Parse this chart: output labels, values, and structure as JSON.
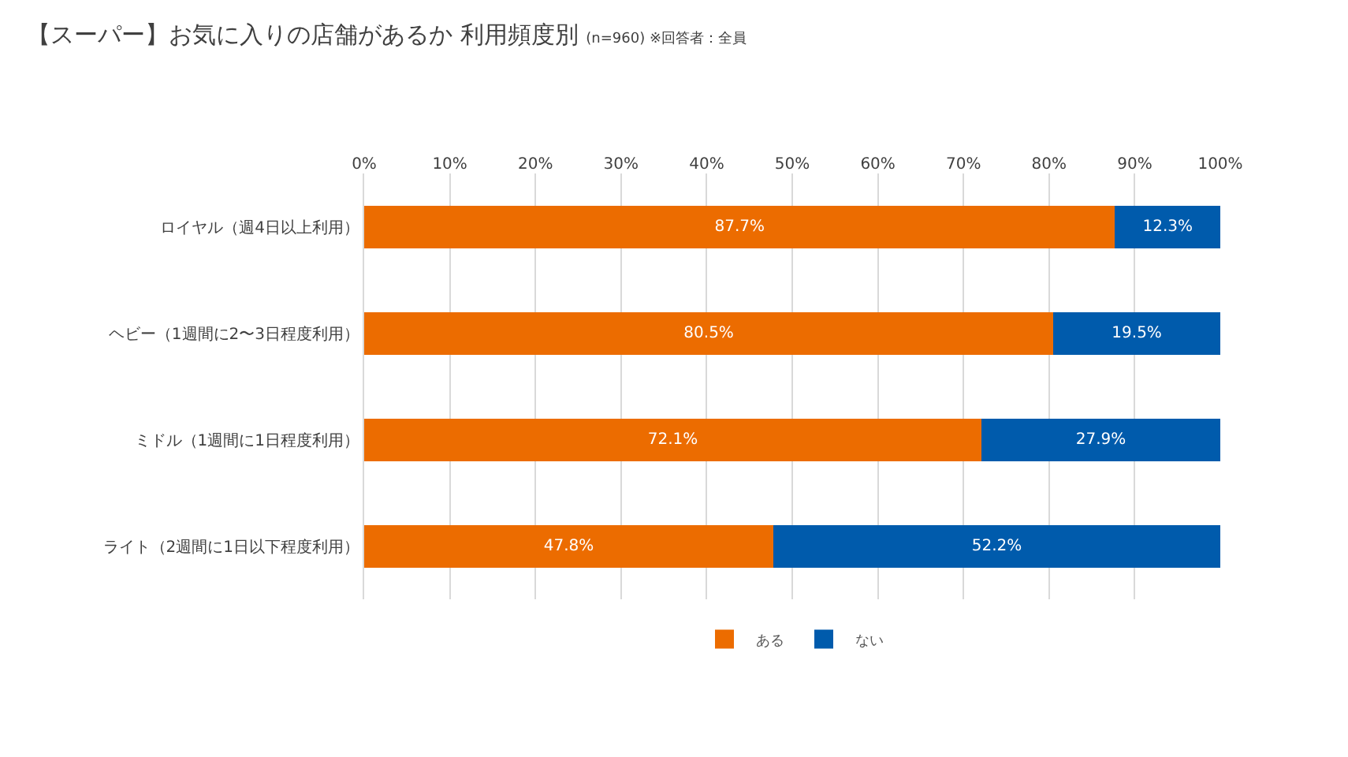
{
  "chart_data": {
    "type": "bar",
    "orientation": "horizontal",
    "stacked": true,
    "title": "【スーパー】お気に入りの店舗があるか 利用頻度別",
    "subtitle": "(n=960) ※回答者：全員",
    "categories": [
      "ロイヤル（週4日以上利用）",
      "ヘビー（1週間に2〜3日程度利用）",
      "ミドル（1週間に1日程度利用）",
      "ライト（2週間に1日以下程度利用）"
    ],
    "series": [
      {
        "name": "ある",
        "color": "#ec6c00",
        "values": [
          87.7,
          80.5,
          72.1,
          47.8
        ],
        "value_labels": [
          "87.7%",
          "80.5%",
          "72.1%",
          "47.8%"
        ]
      },
      {
        "name": "ない",
        "color": "#005bac",
        "values": [
          12.3,
          19.5,
          27.9,
          52.2
        ],
        "value_labels": [
          "12.3%",
          "19.5%",
          "27.9%",
          "52.2%"
        ]
      }
    ],
    "xlim": [
      0,
      100
    ],
    "xticks": [
      {
        "value": 0,
        "label": "0%"
      },
      {
        "value": 10,
        "label": "10%"
      },
      {
        "value": 20,
        "label": "20%"
      },
      {
        "value": 30,
        "label": "30%"
      },
      {
        "value": 40,
        "label": "40%"
      },
      {
        "value": 50,
        "label": "50%"
      },
      {
        "value": 60,
        "label": "60%"
      },
      {
        "value": 70,
        "label": "70%"
      },
      {
        "value": 80,
        "label": "80%"
      },
      {
        "value": 90,
        "label": "90%"
      },
      {
        "value": 100,
        "label": "100%"
      }
    ],
    "grid": "x",
    "legend": "bottom"
  }
}
